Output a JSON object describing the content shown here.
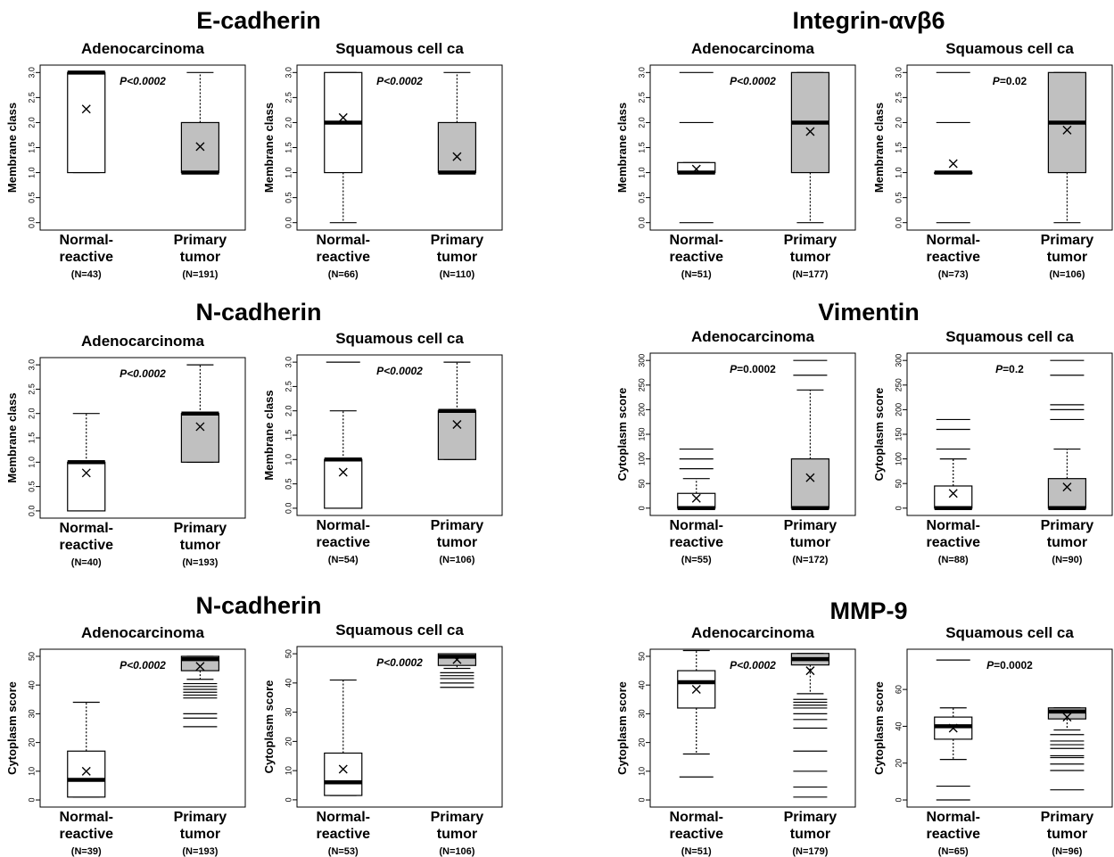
{
  "figure": {
    "panel_titles": [
      "E-cadherin",
      "Integrin-αvβ6",
      "N-cadherin",
      "Vimentin",
      "N-cadherin",
      "MMP-9"
    ]
  },
  "chart_data": [
    {
      "type": "box",
      "title": "E-cadherin",
      "subtitle": "Adenocarcinoma",
      "ylabel": "Membrane class",
      "ylim": [
        0,
        3
      ],
      "yticks": [
        "0.0",
        "0.5",
        "1.0",
        "1.5",
        "2.0",
        "2.5",
        "3.0"
      ],
      "ytick_values": [
        0,
        0.5,
        1,
        1.5,
        2,
        2.5,
        3
      ],
      "categories": [
        "Normal-\nreactive",
        "Primary\ntumor"
      ],
      "n_labels": [
        "(N=43)",
        "(N=191)"
      ],
      "pvalue": "P<0.0002",
      "boxes": [
        {
          "q1": 1,
          "median": 3,
          "q3": 3,
          "whisker_low": 1,
          "whisker_high": 3,
          "mean": 2.27,
          "outliers": []
        },
        {
          "q1": 1,
          "median": 1,
          "q3": 2,
          "whisker_low": 1,
          "whisker_high": 3,
          "mean": 1.52,
          "outliers": []
        }
      ]
    },
    {
      "type": "box",
      "title": "E-cadherin",
      "subtitle": "Squamous cell ca",
      "ylabel": "Membrane class",
      "ylim": [
        0,
        3
      ],
      "yticks": [
        "0.0",
        "0.5",
        "1.0",
        "1.5",
        "2.0",
        "2.5",
        "3.0"
      ],
      "ytick_values": [
        0,
        0.5,
        1,
        1.5,
        2,
        2.5,
        3
      ],
      "categories": [
        "Normal-\nreactive",
        "Primary\ntumor"
      ],
      "n_labels": [
        "(N=66)",
        "(N=110)"
      ],
      "pvalue": "P<0.0002",
      "boxes": [
        {
          "q1": 1,
          "median": 2,
          "q3": 3,
          "whisker_low": 0,
          "whisker_high": 3,
          "mean": 2.1,
          "outliers": []
        },
        {
          "q1": 1,
          "median": 1,
          "q3": 2,
          "whisker_low": 1,
          "whisker_high": 3,
          "mean": 1.32,
          "outliers": []
        }
      ]
    },
    {
      "type": "box",
      "title": "Integrin-αvβ6",
      "subtitle": "Adenocarcinoma",
      "ylabel": "Membrane class",
      "ylim": [
        0,
        3
      ],
      "yticks": [
        "0.0",
        "0.5",
        "1.0",
        "1.5",
        "2.0",
        "2.5",
        "3.0"
      ],
      "ytick_values": [
        0,
        0.5,
        1,
        1.5,
        2,
        2.5,
        3
      ],
      "categories": [
        "Normal-\nreactive",
        "Primary\ntumor"
      ],
      "n_labels": [
        "(N=51)",
        "(N=177)"
      ],
      "pvalue": "P<0.0002",
      "boxes": [
        {
          "q1": 1,
          "median": 1,
          "q3": 1.2,
          "whisker_low": 1,
          "whisker_high": 1.2,
          "mean": 1.07,
          "outliers": [
            0,
            2,
            3
          ]
        },
        {
          "q1": 1,
          "median": 2,
          "q3": 3,
          "whisker_low": 0,
          "whisker_high": 3,
          "mean": 1.82,
          "outliers": []
        }
      ]
    },
    {
      "type": "box",
      "title": "Integrin-αvβ6",
      "subtitle": "Squamous cell ca",
      "ylabel": "Membrane class",
      "ylim": [
        0,
        3
      ],
      "yticks": [
        "0.0",
        "0.5",
        "1.0",
        "1.5",
        "2.0",
        "2.5",
        "3.0"
      ],
      "ytick_values": [
        0,
        0.5,
        1,
        1.5,
        2,
        2.5,
        3
      ],
      "categories": [
        "Normal-\nreactive",
        "Primary\ntumor"
      ],
      "n_labels": [
        "(N=73)",
        "(N=106)"
      ],
      "pvalue": "P=0.02",
      "boxes": [
        {
          "q1": 1,
          "median": 1,
          "q3": 1,
          "whisker_low": 1,
          "whisker_high": 1,
          "mean": 1.18,
          "outliers": [
            0,
            2,
            3
          ]
        },
        {
          "q1": 1,
          "median": 2,
          "q3": 3,
          "whisker_low": 0,
          "whisker_high": 3,
          "mean": 1.85,
          "outliers": []
        }
      ]
    },
    {
      "type": "box",
      "title": "N-cadherin",
      "subtitle": "Adenocarcinoma",
      "ylabel": "Membrane class",
      "ylim": [
        0,
        3
      ],
      "yticks": [
        "0.0",
        "0.5",
        "1.0",
        "1.5",
        "2.0",
        "2.5",
        "3.0"
      ],
      "ytick_values": [
        0,
        0.5,
        1,
        1.5,
        2,
        2.5,
        3
      ],
      "categories": [
        "Normal-\nreactive",
        "Primary\ntumor"
      ],
      "n_labels": [
        "(N=40)",
        "(N=193)"
      ],
      "pvalue": "P<0.0002",
      "boxes": [
        {
          "q1": 0,
          "median": 1,
          "q3": 1,
          "whisker_low": 0,
          "whisker_high": 2,
          "mean": 0.78,
          "outliers": []
        },
        {
          "q1": 1,
          "median": 2,
          "q3": 2,
          "whisker_low": 1,
          "whisker_high": 3,
          "mean": 1.73,
          "outliers": []
        }
      ]
    },
    {
      "type": "box",
      "title": "N-cadherin",
      "subtitle": "Squamous cell ca",
      "ylabel": "Membrane class",
      "ylim": [
        0,
        3
      ],
      "yticks": [
        "0.0",
        "0.5",
        "1.0",
        "1.5",
        "2.0",
        "2.5",
        "3.0"
      ],
      "ytick_values": [
        0,
        0.5,
        1,
        1.5,
        2,
        2.5,
        3
      ],
      "categories": [
        "Normal-\nreactive",
        "Primary\ntumor"
      ],
      "n_labels": [
        "(N=54)",
        "(N=106)"
      ],
      "pvalue": "P<0.0002",
      "boxes": [
        {
          "q1": 0,
          "median": 1,
          "q3": 1,
          "whisker_low": 0,
          "whisker_high": 2,
          "mean": 0.74,
          "outliers": [
            3
          ]
        },
        {
          "q1": 1,
          "median": 2,
          "q3": 2,
          "whisker_low": 1,
          "whisker_high": 3,
          "mean": 1.72,
          "outliers": []
        }
      ]
    },
    {
      "type": "box",
      "title": "Vimentin",
      "subtitle": "Adenocarcinoma",
      "ylabel": "Cytoplasm score",
      "ylim": [
        0,
        300
      ],
      "yticks": [
        "0",
        "50",
        "100",
        "150",
        "200",
        "250",
        "300"
      ],
      "ytick_values": [
        0,
        50,
        100,
        150,
        200,
        250,
        300
      ],
      "categories": [
        "Normal-\nreactive",
        "Primary\ntumor"
      ],
      "n_labels": [
        "(N=55)",
        "(N=172)"
      ],
      "pvalue": "P=0.0002",
      "boxes": [
        {
          "q1": 0,
          "median": 0,
          "q3": 30,
          "whisker_low": 0,
          "whisker_high": 60,
          "mean": 20,
          "outliers": [
            80,
            100,
            120
          ]
        },
        {
          "q1": 0,
          "median": 0,
          "q3": 100,
          "whisker_low": 0,
          "whisker_high": 240,
          "mean": 62,
          "outliers": [
            270,
            300
          ]
        }
      ]
    },
    {
      "type": "box",
      "title": "Vimentin",
      "subtitle": "Squamous cell ca",
      "ylabel": "Cytoplasm score",
      "ylim": [
        0,
        300
      ],
      "yticks": [
        "0",
        "50",
        "100",
        "150",
        "200",
        "250",
        "300"
      ],
      "ytick_values": [
        0,
        50,
        100,
        150,
        200,
        250,
        300
      ],
      "categories": [
        "Normal-\nreactive",
        "Primary\ntumor"
      ],
      "n_labels": [
        "(N=88)",
        "(N=90)"
      ],
      "pvalue": "P=0.2",
      "boxes": [
        {
          "q1": 0,
          "median": 0,
          "q3": 45,
          "whisker_low": 0,
          "whisker_high": 100,
          "mean": 30,
          "outliers": [
            120,
            160,
            180
          ]
        },
        {
          "q1": 0,
          "median": 0,
          "q3": 60,
          "whisker_low": 0,
          "whisker_high": 120,
          "mean": 43,
          "outliers": [
            180,
            200,
            210,
            270,
            300
          ]
        }
      ]
    },
    {
      "type": "box",
      "title": "N-cadherin",
      "subtitle": "Adenocarcinoma",
      "ylabel": "Cytoplasm score",
      "ylim": [
        0,
        50
      ],
      "yticks": [
        "0",
        "10",
        "20",
        "30",
        "40",
        "50"
      ],
      "ytick_values": [
        0,
        10,
        20,
        30,
        40,
        50
      ],
      "categories": [
        "Normal-\nreactive",
        "Primary\ntumor"
      ],
      "n_labels": [
        "(N=39)",
        "(N=193)"
      ],
      "pvalue": "P<0.0002",
      "boxes": [
        {
          "q1": 1,
          "median": 7,
          "q3": 17,
          "whisker_low": 1,
          "whisker_high": 34,
          "mean": 10,
          "outliers": []
        },
        {
          "q1": 45,
          "median": 49,
          "q3": 50,
          "whisker_low": 42,
          "whisker_high": 50,
          "mean": 46.5,
          "outliers": [
            25.5,
            28.5,
            30,
            35.5,
            36.5,
            37.5,
            38.5,
            39.5,
            40.5
          ]
        }
      ]
    },
    {
      "type": "box",
      "title": "N-cadherin",
      "subtitle": "Squamous cell ca",
      "ylabel": "Cytoplasm score",
      "ylim": [
        0,
        50
      ],
      "yticks": [
        "0",
        "10",
        "20",
        "30",
        "40",
        "50"
      ],
      "ytick_values": [
        0,
        10,
        20,
        30,
        40,
        50
      ],
      "categories": [
        "Normal-\nreactive",
        "Primary\ntumor"
      ],
      "n_labels": [
        "(N=53)",
        "(N=106)"
      ],
      "pvalue": "P<0.0002",
      "boxes": [
        {
          "q1": 1.5,
          "median": 6,
          "q3": 16,
          "whisker_low": 1.5,
          "whisker_high": 41,
          "mean": 10.5,
          "outliers": []
        },
        {
          "q1": 46,
          "median": 49,
          "q3": 50,
          "whisker_low": 45,
          "whisker_high": 50,
          "mean": 48,
          "outliers": [
            38.5,
            40,
            41.5,
            42.5,
            43.5
          ]
        }
      ]
    },
    {
      "type": "box",
      "title": "MMP-9",
      "subtitle": "Adenocarcinoma",
      "ylabel": "Cytoplasm score",
      "ylim": [
        0,
        50
      ],
      "yticks": [
        "0",
        "10",
        "20",
        "30",
        "40",
        "50"
      ],
      "ytick_values": [
        0,
        10,
        20,
        30,
        40,
        50
      ],
      "categories": [
        "Normal-\nreactive",
        "Primary\ntumor"
      ],
      "n_labels": [
        "(N=51)",
        "(N=179)"
      ],
      "pvalue": "P<0.0002",
      "boxes": [
        {
          "q1": 32,
          "median": 41,
          "q3": 45,
          "whisker_low": 16,
          "whisker_high": 52,
          "mean": 38.5,
          "outliers": [
            8
          ]
        },
        {
          "q1": 47,
          "median": 49,
          "q3": 51,
          "whisker_low": 37,
          "whisker_high": 51,
          "mean": 45,
          "outliers": [
            1,
            4.5,
            10,
            17,
            25,
            28,
            30,
            32,
            33,
            34,
            35
          ]
        }
      ]
    },
    {
      "type": "box",
      "title": "MMP-9",
      "subtitle": "Squamous cell ca",
      "ylabel": "Cytoplasm score",
      "ylim": [
        0,
        78
      ],
      "yticks": [
        "0",
        "20",
        "40",
        "60"
      ],
      "ytick_values": [
        0,
        20,
        40,
        60
      ],
      "categories": [
        "Normal-\nreactive",
        "Primary\ntumor"
      ],
      "n_labels": [
        "(N=65)",
        "(N=96)"
      ],
      "pvalue": "P=0.0002",
      "boxes": [
        {
          "q1": 33,
          "median": 40,
          "q3": 45,
          "whisker_low": 22,
          "whisker_high": 50,
          "mean": 39,
          "outliers": [
            0,
            7.5,
            76
          ]
        },
        {
          "q1": 44,
          "median": 48,
          "q3": 50,
          "whisker_low": 38,
          "whisker_high": 50,
          "mean": 45,
          "outliers": [
            5.5,
            16,
            19.5,
            23,
            24,
            28,
            30,
            32,
            35.5
          ]
        }
      ]
    }
  ]
}
